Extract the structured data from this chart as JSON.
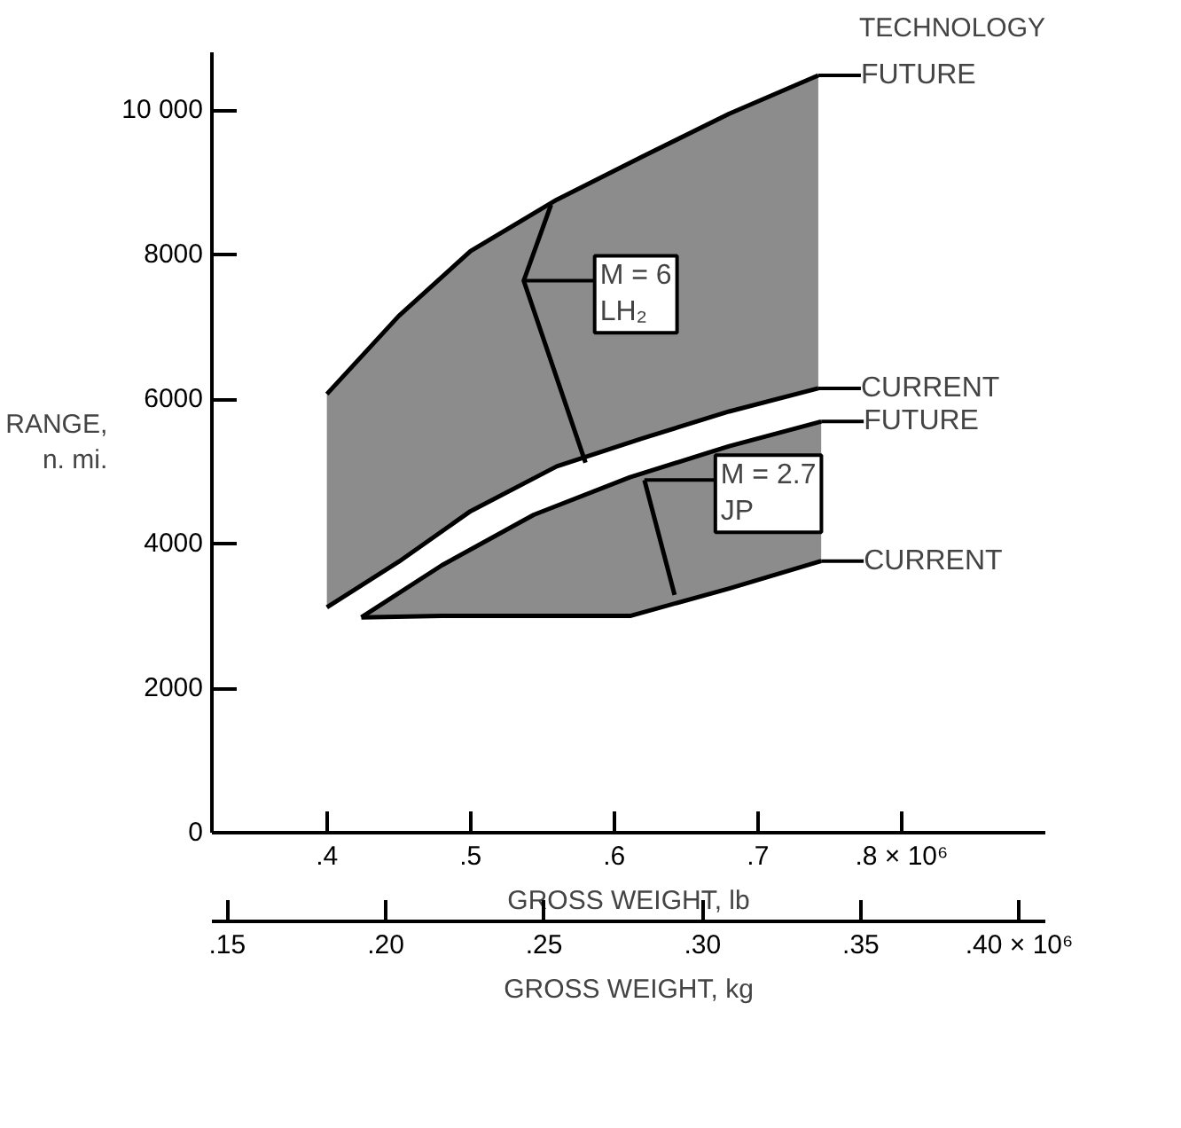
{
  "chart_data": {
    "type": "line",
    "legend_title": "TECHNOLOGY",
    "xlabel": "GROSS WEIGHT, lb",
    "ylabel": "RANGE,\nn. mi.",
    "x2label": "GROSS WEIGHT, kg",
    "xlim": [
      0.32,
      0.9
    ],
    "ylim": [
      0,
      10800
    ],
    "x2lim": [
      0.14515,
      0.40823
    ],
    "xticks": [
      {
        "value": 0.4,
        "label": ".4"
      },
      {
        "value": 0.5,
        "label": ".5"
      },
      {
        "value": 0.6,
        "label": ".6"
      },
      {
        "value": 0.7,
        "label": ".7"
      },
      {
        "value": 0.8,
        "label": ".8 × 10⁶"
      }
    ],
    "x2ticks": [
      {
        "value": 0.15,
        "label": ".15"
      },
      {
        "value": 0.2,
        "label": ".20"
      },
      {
        "value": 0.25,
        "label": ".25"
      },
      {
        "value": 0.3,
        "label": ".30"
      },
      {
        "value": 0.35,
        "label": ".35"
      },
      {
        "value": 0.4,
        "label": ".40 × 10⁶"
      }
    ],
    "yticks": [
      0,
      2000,
      4000,
      6000,
      8000,
      {
        "value": 10000,
        "label": "10 000"
      }
    ],
    "grid": false,
    "legend": "right",
    "series": [
      {
        "name": "FUTURE",
        "color": "#000000",
        "x": [
          0.4,
          0.45,
          0.5,
          0.56,
          0.62,
          0.68,
          0.742
        ],
        "values": [
          6070,
          7150,
          8050,
          8760,
          9360,
          9950,
          10480
        ],
        "lower": [
          3120,
          3750,
          4450,
          5070,
          5460,
          5830,
          6150
        ],
        "upper": [
          6070,
          7150,
          8050,
          8760,
          9360,
          9950,
          10480
        ]
      },
      {
        "name": "CURRENT",
        "color": "#000000",
        "x": [
          0.4,
          0.45,
          0.5,
          0.56,
          0.62,
          0.68,
          0.742
        ],
        "values": [
          3120,
          3750,
          4450,
          5070,
          5460,
          5830,
          6150
        ]
      },
      {
        "name": "FUTURE",
        "color": "#000000",
        "x": [
          0.424,
          0.48,
          0.544,
          0.611,
          0.68,
          0.744
        ],
        "values": [
          2980,
          3700,
          4400,
          4920,
          5350,
          5690
        ],
        "lower": [
          2980,
          3000,
          3000,
          3000,
          3380,
          3760
        ],
        "upper": [
          2980,
          3700,
          4400,
          4920,
          5350,
          5690
        ]
      },
      {
        "name": "CURRENT",
        "color": "#000000",
        "x": [
          0.424,
          0.48,
          0.544,
          0.611,
          0.68,
          0.744
        ],
        "values": [
          2980,
          3000,
          3000,
          3000,
          3380,
          3760
        ]
      },
      {
        "color": "#000000",
        "x": [
          0.556,
          0.537,
          0.58
        ],
        "values": [
          8690,
          7640,
          5120
        ]
      },
      {
        "color": "#000000",
        "x": [
          0.621,
          0.642
        ],
        "values": [
          4880,
          3290
        ]
      }
    ],
    "annotations": [
      {
        "text": "M = 6\nLH₂",
        "x": 0.537,
        "y": 7640
      },
      {
        "text": "M = 2.7\nJP",
        "x": 0.621,
        "y": 4880
      }
    ]
  }
}
